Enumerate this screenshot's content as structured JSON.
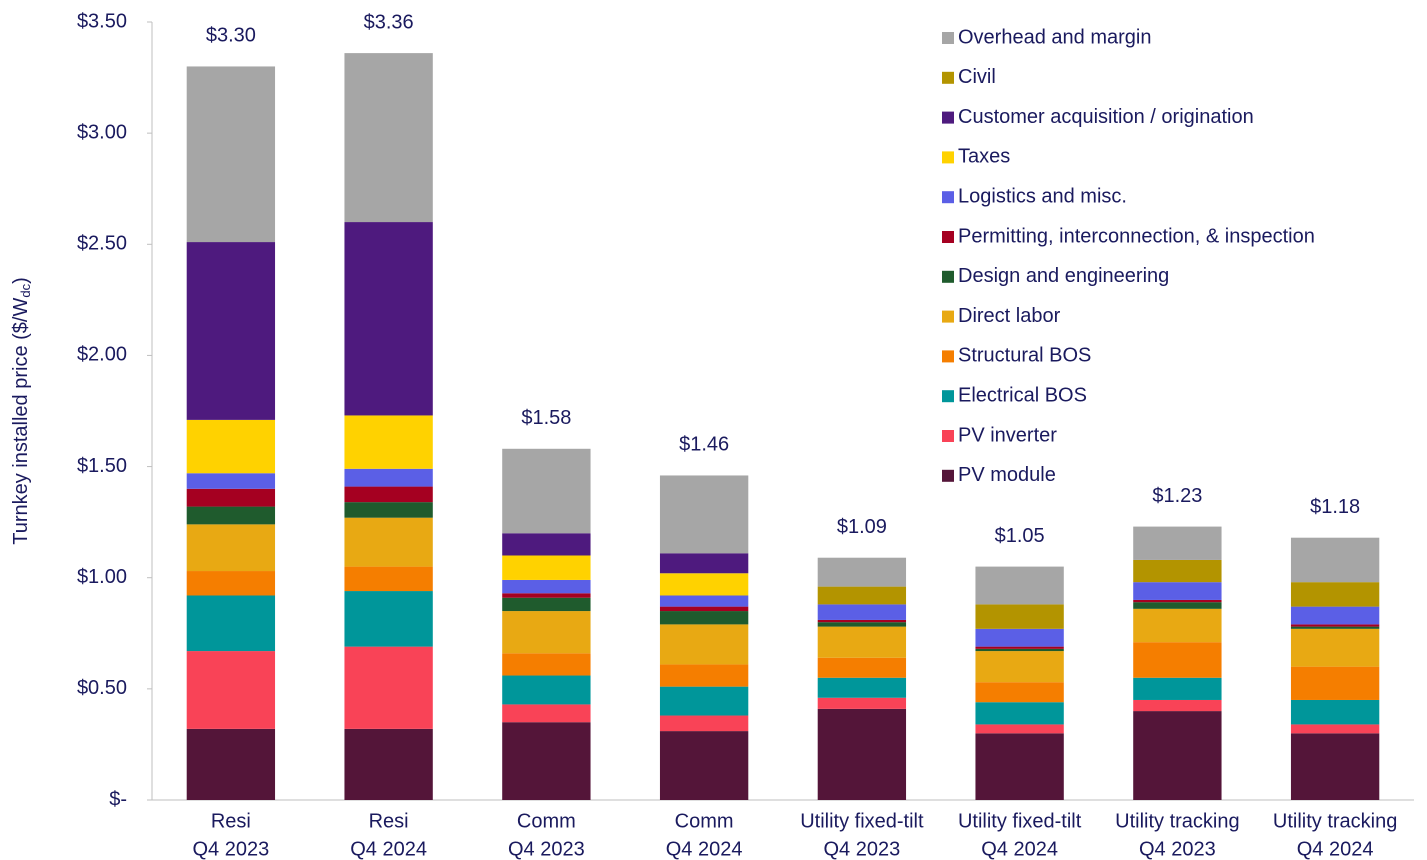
{
  "chart_data": {
    "type": "stacked_bar",
    "ylabel": [
      "Turnkey installed price ($/W",
      "dc",
      ")"
    ],
    "categories": [
      [
        "Resi",
        "Q4 2023"
      ],
      [
        "Resi",
        "Q4 2024"
      ],
      [
        "Comm",
        "Q4 2023"
      ],
      [
        "Comm",
        "Q4 2024"
      ],
      [
        "Utility fixed-tilt",
        "Q4 2023"
      ],
      [
        "Utility fixed-tilt",
        "Q4 2024"
      ],
      [
        "Utility tracking",
        "Q4 2023"
      ],
      [
        "Utility tracking",
        "Q4 2024"
      ]
    ],
    "series": [
      {
        "name": "PV module",
        "color": "#541539",
        "values": [
          0.32,
          0.32,
          0.35,
          0.31,
          0.41,
          0.3,
          0.4,
          0.3
        ]
      },
      {
        "name": "PV inverter",
        "color": "#f94357",
        "values": [
          0.35,
          0.37,
          0.08,
          0.07,
          0.05,
          0.04,
          0.05,
          0.04
        ]
      },
      {
        "name": "Electrical BOS",
        "color": "#00969a",
        "values": [
          0.25,
          0.25,
          0.13,
          0.13,
          0.09,
          0.1,
          0.1,
          0.11
        ]
      },
      {
        "name": "Structural BOS",
        "color": "#f57e00",
        "values": [
          0.11,
          0.11,
          0.1,
          0.1,
          0.09,
          0.09,
          0.16,
          0.15
        ]
      },
      {
        "name": "Direct labor",
        "color": "#e8a913",
        "values": [
          0.21,
          0.22,
          0.19,
          0.18,
          0.14,
          0.14,
          0.15,
          0.17
        ]
      },
      {
        "name": "Design and engineering",
        "color": "#1f5b2d",
        "values": [
          0.08,
          0.07,
          0.06,
          0.06,
          0.02,
          0.01,
          0.03,
          0.01
        ]
      },
      {
        "name": "Permitting, interconnection, & inspection",
        "color": "#a50021",
        "values": [
          0.08,
          0.07,
          0.02,
          0.02,
          0.01,
          0.01,
          0.01,
          0.01
        ]
      },
      {
        "name": "Logistics and misc.",
        "color": "#5b5fe6",
        "values": [
          0.07,
          0.08,
          0.06,
          0.05,
          0.07,
          0.08,
          0.08,
          0.08
        ]
      },
      {
        "name": "Taxes",
        "color": "#ffd200",
        "values": [
          0.24,
          0.24,
          0.11,
          0.1,
          0,
          0,
          0,
          0
        ]
      },
      {
        "name": "Customer acquisition / origination",
        "color": "#4e1a7e",
        "values": [
          0.8,
          0.87,
          0.1,
          0.09,
          0,
          0,
          0,
          0
        ]
      },
      {
        "name": "Civil",
        "color": "#b39400",
        "values": [
          0,
          0,
          0,
          0,
          0.08,
          0.11,
          0.1,
          0.11
        ]
      },
      {
        "name": "Overhead and margin",
        "color": "#a6a6a6",
        "values": [
          0.79,
          0.76,
          0.38,
          0.35,
          0.13,
          0.17,
          0.15,
          0.2
        ]
      }
    ],
    "totals": [
      3.3,
      3.36,
      1.58,
      1.46,
      1.09,
      1.05,
      1.23,
      1.18
    ],
    "total_labels": [
      "$3.30",
      "$3.36",
      "$1.58",
      "$1.46",
      "$1.09",
      "$1.05",
      "$1.23",
      "$1.18"
    ],
    "ylim": [
      0,
      3.5
    ],
    "yticks": [
      {
        "value": 0,
        "label": "$-"
      },
      {
        "value": 0.5,
        "label": "$0.50"
      },
      {
        "value": 1,
        "label": "$1.00"
      },
      {
        "value": 1.5,
        "label": "$1.50"
      },
      {
        "value": 2,
        "label": "$2.00"
      },
      {
        "value": 2.5,
        "label": "$2.50"
      },
      {
        "value": 3,
        "label": "$3.00"
      },
      {
        "value": 3.5,
        "label": "$3.50"
      }
    ],
    "grid": false,
    "legend": "upper right"
  }
}
